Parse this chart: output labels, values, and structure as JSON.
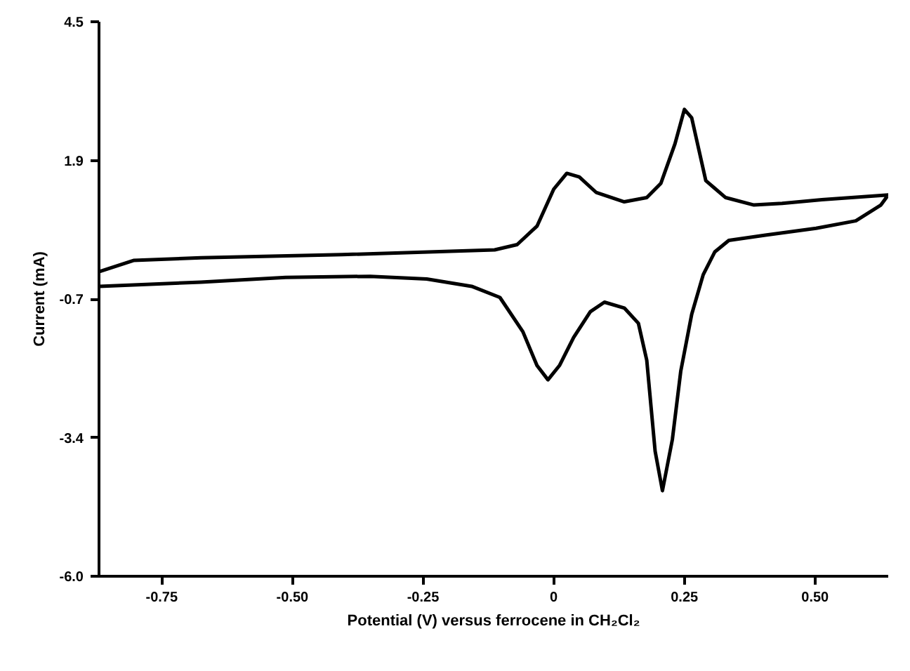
{
  "chart_data": {
    "type": "line",
    "xlabel": "Potential (V) versus ferrocene in CH₂Cl₂",
    "ylabel": "Current (mA)",
    "xlim": [
      -0.87,
      0.64
    ],
    "ylim": [
      -6.0,
      4.5
    ],
    "xticks": [
      -0.75,
      {
        "value": -0.5,
        "label": "-0.50"
      },
      -0.25,
      0,
      0.25,
      {
        "value": 0.5,
        "label": "0.50"
      }
    ],
    "yticks": [
      {
        "value": 4.5,
        "label": "4.5"
      },
      {
        "value": 1.875,
        "label": "1.9"
      },
      {
        "value": -0.75,
        "label": "-0.7"
      },
      {
        "value": -3.375,
        "label": "-3.4"
      },
      {
        "value": -6.0,
        "label": "-6.0"
      }
    ],
    "grid": false,
    "marker": "none",
    "line_style": "solid",
    "series": [
      {
        "color": "#000000",
        "x": [
          -0.869,
          -0.804,
          -0.675,
          -0.405,
          -0.113,
          -0.07,
          -0.032,
          0,
          0.025,
          0.049,
          0.081,
          0.135,
          0.178,
          0.205,
          0.232,
          0.25,
          0.264,
          0.291,
          0.329,
          0.383,
          0.437,
          0.513,
          0.64,
          0.626,
          0.578,
          0.502,
          0.405,
          0.335,
          0.308,
          0.286,
          0.264,
          0.243,
          0.227,
          0.208,
          0.194,
          0.178,
          0.162,
          0.135,
          0.097,
          0.07,
          0.038,
          0.011,
          -0.011,
          -0.032,
          -0.059,
          -0.103,
          -0.157,
          -0.243,
          -0.351,
          -0.513,
          -0.675,
          -0.869
        ],
        "values": [
          -0.23,
          -0.02,
          0.03,
          0.09,
          0.18,
          0.28,
          0.63,
          1.33,
          1.63,
          1.56,
          1.27,
          1.09,
          1.17,
          1.44,
          2.19,
          2.84,
          2.68,
          1.49,
          1.17,
          1.03,
          1.06,
          1.13,
          1.22,
          1.03,
          0.73,
          0.59,
          0.46,
          0.36,
          0.14,
          -0.29,
          -1.04,
          -2.12,
          -3.41,
          -4.38,
          -3.63,
          -1.91,
          -1.21,
          -0.92,
          -0.81,
          -0.99,
          -1.48,
          -2.01,
          -2.28,
          -2.01,
          -1.37,
          -0.72,
          -0.51,
          -0.37,
          -0.32,
          -0.34,
          -0.43,
          -0.51
        ]
      }
    ]
  }
}
